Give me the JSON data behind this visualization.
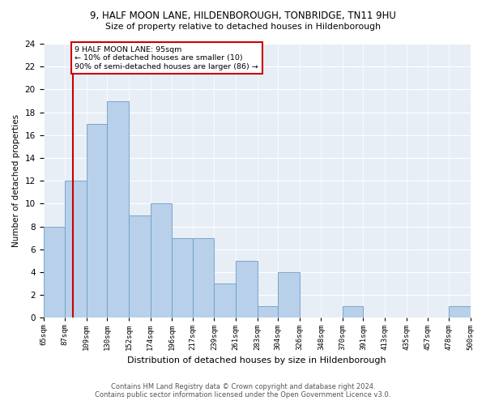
{
  "title1": "9, HALF MOON LANE, HILDENBOROUGH, TONBRIDGE, TN11 9HU",
  "title2": "Size of property relative to detached houses in Hildenborough",
  "xlabel": "Distribution of detached houses by size in Hildenborough",
  "ylabel": "Number of detached properties",
  "footer1": "Contains HM Land Registry data © Crown copyright and database right 2024.",
  "footer2": "Contains public sector information licensed under the Open Government Licence v3.0.",
  "annotation_line1": "9 HALF MOON LANE: 95sqm",
  "annotation_line2": "← 10% of detached houses are smaller (10)",
  "annotation_line3": "90% of semi-detached houses are larger (86) →",
  "property_size": 95,
  "bar_edges": [
    65,
    87,
    109,
    130,
    152,
    174,
    196,
    217,
    239,
    261,
    283,
    304,
    326,
    348,
    370,
    391,
    413,
    435,
    457,
    478,
    500
  ],
  "bar_heights": [
    8,
    12,
    17,
    19,
    9,
    10,
    7,
    7,
    3,
    5,
    1,
    4,
    0,
    0,
    1,
    0,
    0,
    0,
    0,
    1
  ],
  "bar_color": "#b8d0ea",
  "bar_edge_color": "#6a9ec5",
  "vline_color": "#cc0000",
  "vline_x": 95,
  "annotation_box_color": "#cc0000",
  "bg_color": "#e8eef6",
  "ylim": [
    0,
    24
  ],
  "yticks": [
    0,
    2,
    4,
    6,
    8,
    10,
    12,
    14,
    16,
    18,
    20,
    22,
    24
  ],
  "tick_labels": [
    "65sqm",
    "87sqm",
    "109sqm",
    "130sqm",
    "152sqm",
    "174sqm",
    "196sqm",
    "217sqm",
    "239sqm",
    "261sqm",
    "283sqm",
    "304sqm",
    "326sqm",
    "348sqm",
    "370sqm",
    "391sqm",
    "413sqm",
    "435sqm",
    "457sqm",
    "478sqm",
    "500sqm"
  ]
}
